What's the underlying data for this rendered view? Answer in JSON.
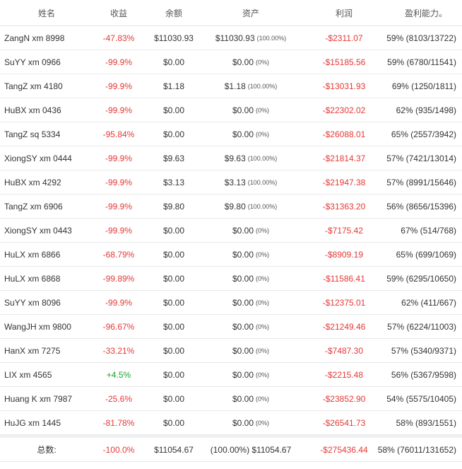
{
  "header": {
    "name": "姓名",
    "gain": "收益",
    "balance": "余额",
    "assets": "资产",
    "profit": "利润",
    "win_rate": "盈利能力。"
  },
  "rows": [
    {
      "name": "ZangN xm 8998",
      "gain": "-47.83%",
      "gain_sign": "neg",
      "balance": "$11030.93",
      "assets": "$11030.93",
      "assets_pct": "(100.00%)",
      "profit": "-$2311.07",
      "win_rate": "59% (8103/13722)"
    },
    {
      "name": "SuYY xm 0966",
      "gain": "-99.9%",
      "gain_sign": "neg",
      "balance": "$0.00",
      "assets": "$0.00",
      "assets_pct": "(0%)",
      "profit": "-$15185.56",
      "win_rate": "59% (6780/11541)"
    },
    {
      "name": "TangZ xm 4180",
      "gain": "-99.9%",
      "gain_sign": "neg",
      "balance": "$1.18",
      "assets": "$1.18",
      "assets_pct": "(100.00%)",
      "profit": "-$13031.93",
      "win_rate": "69% (1250/1811)"
    },
    {
      "name": "HuBX xm 0436",
      "gain": "-99.9%",
      "gain_sign": "neg",
      "balance": "$0.00",
      "assets": "$0.00",
      "assets_pct": "(0%)",
      "profit": "-$22302.02",
      "win_rate": "62% (935/1498)"
    },
    {
      "name": "TangZ sq 5334",
      "gain": "-95.84%",
      "gain_sign": "neg",
      "balance": "$0.00",
      "assets": "$0.00",
      "assets_pct": "(0%)",
      "profit": "-$26088.01",
      "win_rate": "65% (2557/3942)"
    },
    {
      "name": "XiongSY xm 0444",
      "gain": "-99.9%",
      "gain_sign": "neg",
      "balance": "$9.63",
      "assets": "$9.63",
      "assets_pct": "(100.00%)",
      "profit": "-$21814.37",
      "win_rate": "57% (7421/13014)"
    },
    {
      "name": "HuBX xm 4292",
      "gain": "-99.9%",
      "gain_sign": "neg",
      "balance": "$3.13",
      "assets": "$3.13",
      "assets_pct": "(100.00%)",
      "profit": "-$21947.38",
      "win_rate": "57% (8991/15646)"
    },
    {
      "name": "TangZ xm 6906",
      "gain": "-99.9%",
      "gain_sign": "neg",
      "balance": "$9.80",
      "assets": "$9.80",
      "assets_pct": "(100.00%)",
      "profit": "-$31363.20",
      "win_rate": "56% (8656/15396)"
    },
    {
      "name": "XiongSY xm 0443",
      "gain": "-99.9%",
      "gain_sign": "neg",
      "balance": "$0.00",
      "assets": "$0.00",
      "assets_pct": "(0%)",
      "profit": "-$7175.42",
      "win_rate": "67% (514/768)"
    },
    {
      "name": "HuLX xm 6866",
      "gain": "-68.79%",
      "gain_sign": "neg",
      "balance": "$0.00",
      "assets": "$0.00",
      "assets_pct": "(0%)",
      "profit": "-$8909.19",
      "win_rate": "65% (699/1069)"
    },
    {
      "name": "HuLX xm 6868",
      "gain": "-99.89%",
      "gain_sign": "neg",
      "balance": "$0.00",
      "assets": "$0.00",
      "assets_pct": "(0%)",
      "profit": "-$11586.41",
      "win_rate": "59% (6295/10650)"
    },
    {
      "name": "SuYY xm 8096",
      "gain": "-99.9%",
      "gain_sign": "neg",
      "balance": "$0.00",
      "assets": "$0.00",
      "assets_pct": "(0%)",
      "profit": "-$12375.01",
      "win_rate": "62% (411/667)"
    },
    {
      "name": "WangJH xm 9800",
      "gain": "-96.67%",
      "gain_sign": "neg",
      "balance": "$0.00",
      "assets": "$0.00",
      "assets_pct": "(0%)",
      "profit": "-$21249.46",
      "win_rate": "57% (6224/11003)"
    },
    {
      "name": "HanX xm 7275",
      "gain": "-33.21%",
      "gain_sign": "neg",
      "balance": "$0.00",
      "assets": "$0.00",
      "assets_pct": "(0%)",
      "profit": "-$7487.30",
      "win_rate": "57% (5340/9371)"
    },
    {
      "name": "LIX xm 4565",
      "gain": "+4.5%",
      "gain_sign": "pos",
      "balance": "$0.00",
      "assets": "$0.00",
      "assets_pct": "(0%)",
      "profit": "-$2215.48",
      "win_rate": "56% (5367/9598)"
    },
    {
      "name": "Huang K xm 7987",
      "gain": "-25.6%",
      "gain_sign": "neg",
      "balance": "$0.00",
      "assets": "$0.00",
      "assets_pct": "(0%)",
      "profit": "-$23852.90",
      "win_rate": "54% (5575/10405)"
    },
    {
      "name": "HuJG xm 1445",
      "gain": "-81.78%",
      "gain_sign": "neg",
      "balance": "$0.00",
      "assets": "$0.00",
      "assets_pct": "(0%)",
      "profit": "-$26541.73",
      "win_rate": "58% (893/1551)"
    }
  ],
  "total": {
    "label": "总数:",
    "gain": "-100.0%",
    "balance": "$11054.67",
    "assets": "(100.00%) $11054.67",
    "profit": "-$275436.44",
    "win_rate": "58% (76011/131652)"
  },
  "colors": {
    "negative": "#e53935",
    "positive": "#20a032"
  }
}
